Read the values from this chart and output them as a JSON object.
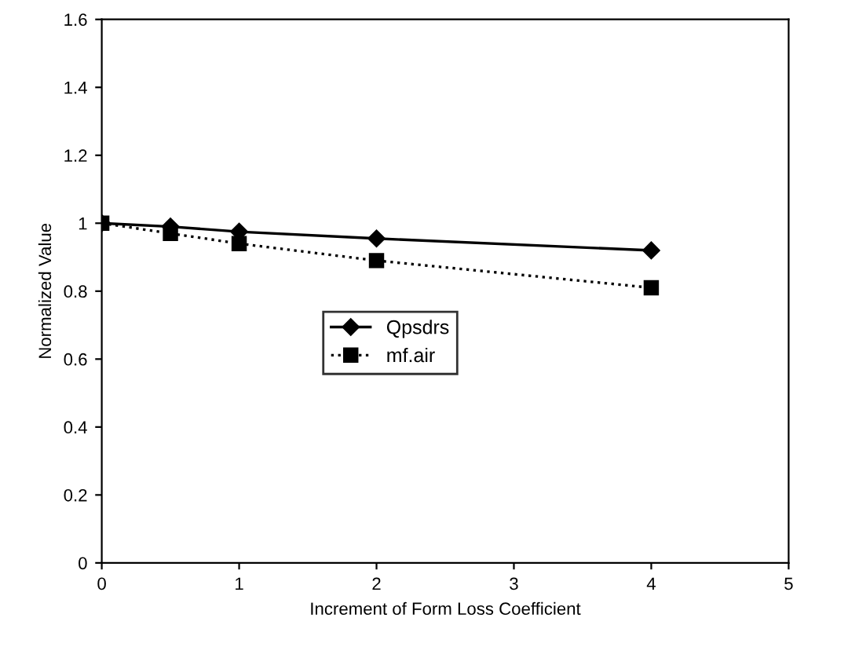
{
  "chart_data": {
    "type": "line",
    "xlabel": "Increment of Form Loss Coefficient",
    "ylabel": "Normalized Value",
    "x": [
      0,
      0.5,
      1,
      2,
      4
    ],
    "series": [
      {
        "name": "Qpsdrs",
        "color": "#000000",
        "values": [
          1,
          0.99,
          0.975,
          0.955,
          0.92
        ],
        "marker": "diamond",
        "line_style": "solid"
      },
      {
        "name": "mf.air",
        "color": "#000000",
        "values": [
          1,
          0.97,
          0.94,
          0.89,
          0.81
        ],
        "marker": "square",
        "line_style": "dotted"
      }
    ],
    "xlim": [
      0,
      5
    ],
    "xticks": [
      0,
      1,
      2,
      3,
      4,
      5
    ],
    "ylim": [
      0,
      1.6
    ],
    "yticks": [
      0,
      0.2,
      0.4,
      0.6,
      0.8,
      1,
      1.2,
      1.4,
      1.6
    ],
    "grid": false,
    "legend": "center"
  }
}
